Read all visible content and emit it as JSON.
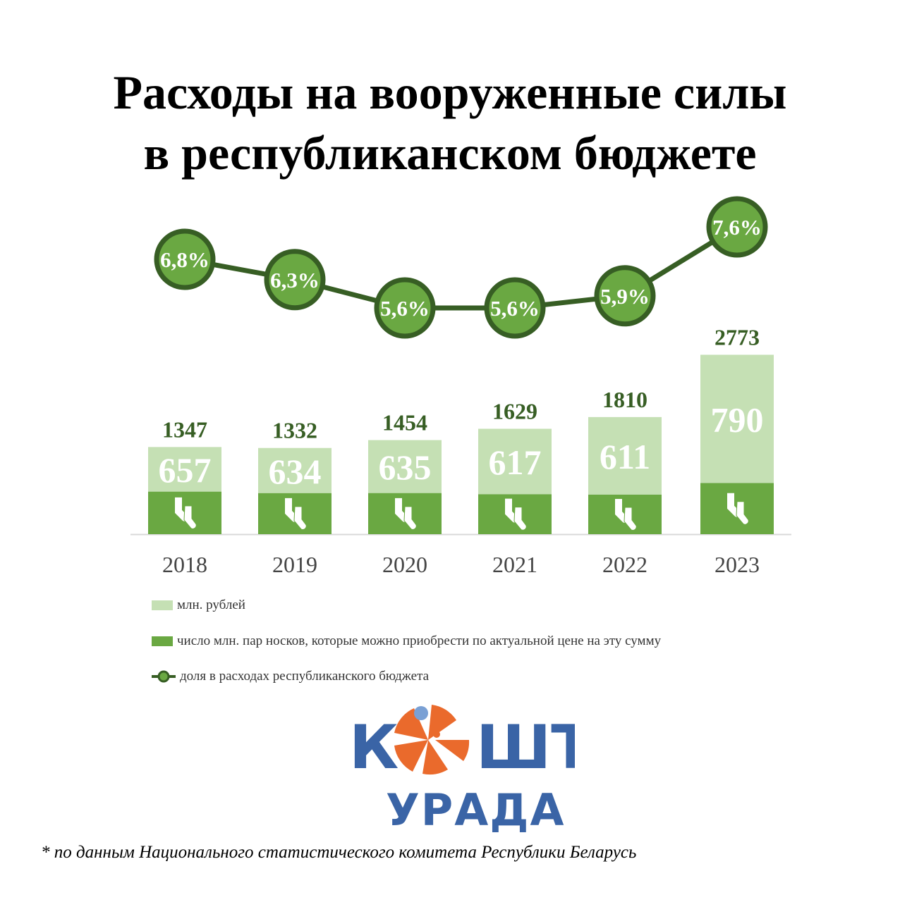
{
  "title_line1": "Расходы на вооруженные силы",
  "title_line2": "в республиканском бюджете",
  "chart_data": {
    "type": "bar",
    "categories": [
      "2018",
      "2019",
      "2020",
      "2021",
      "2022",
      "2023"
    ],
    "series": [
      {
        "name": "млн. рублей",
        "values": [
          1347,
          1332,
          1454,
          1629,
          1810,
          2773
        ],
        "color": "#c5e0b4"
      },
      {
        "name": "число млн. пар носков, которые можно приобрести по актуальной цене на эту сумму",
        "values": [
          657,
          634,
          635,
          617,
          611,
          790
        ],
        "color": "#6aa842"
      },
      {
        "name": "доля в расходах республиканского бюджета",
        "type": "line",
        "values": [
          6.8,
          6.3,
          5.6,
          5.6,
          5.9,
          7.6
        ],
        "labels": [
          "6,8%",
          "6,3%",
          "5,6%",
          "5,6%",
          "5,9%",
          "7,6%"
        ],
        "color": "#375e24"
      }
    ],
    "legend_position": "bottom-left"
  },
  "legend": [
    "млн. рублей",
    "число млн. пар носков, которые можно приобрести по актуальной цене на эту сумму",
    "доля в расходах республиканского бюджета"
  ],
  "logo": {
    "top": "КОШТ",
    "bottom": "УРАДА"
  },
  "footnote": "* по данным Национального статистического комитета Республики Беларусь"
}
